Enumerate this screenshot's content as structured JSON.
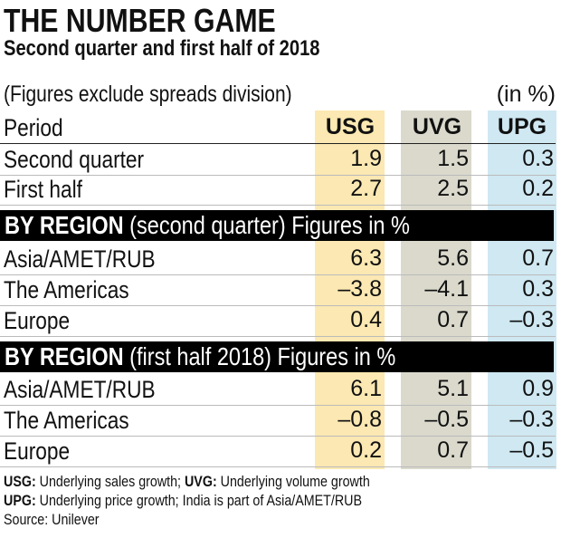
{
  "title": "THE NUMBER GAME",
  "subtitle": "Second quarter and first half of 2018",
  "note": "(Figures exclude spreads division)",
  "unit": "(in %)",
  "colors": {
    "USG": "#fbe8b2",
    "UVG": "#dad9cc",
    "UPG": "#cfe8f2",
    "section_bar": "#000000"
  },
  "chart_data": {
    "type": "table",
    "columns": [
      "Period",
      "USG",
      "UVG",
      "UPG"
    ],
    "sections": [
      {
        "heading_bold": "",
        "heading_rest": "",
        "rows": [
          {
            "label": "Second quarter",
            "values": [
              "1.9",
              "1.5",
              "0.3"
            ]
          },
          {
            "label": "First half",
            "values": [
              "2.7",
              "2.5",
              "0.2"
            ]
          }
        ]
      },
      {
        "heading_bold": "BY REGION",
        "heading_rest": " (second quarter) Figures in %",
        "rows": [
          {
            "label": "Asia/AMET/RUB",
            "values": [
              "6.3",
              "5.6",
              "0.7"
            ]
          },
          {
            "label": "The Americas",
            "values": [
              "–3.8",
              "–4.1",
              "0.3"
            ]
          },
          {
            "label": "Europe",
            "values": [
              "0.4",
              "0.7",
              "–0.3"
            ]
          }
        ]
      },
      {
        "heading_bold": "BY REGION",
        "heading_rest": " (first half 2018) Figures in %",
        "rows": [
          {
            "label": "Asia/AMET/RUB",
            "values": [
              "6.1",
              "5.1",
              "0.9"
            ]
          },
          {
            "label": "The Americas",
            "values": [
              "–0.8",
              "–0.5",
              "–0.3"
            ]
          },
          {
            "label": "Europe",
            "values": [
              "0.2",
              "0.7",
              "–0.5"
            ]
          }
        ]
      }
    ]
  },
  "footnotes": [
    {
      "bold": "USG:",
      "text": " Underlying sales growth; ",
      "bold2": "UVG:",
      "text2": " Underlying volume growth"
    },
    {
      "bold": "UPG:",
      "text": " Underlying price growth; India is part of Asia/AMET/RUB",
      "bold2": "",
      "text2": ""
    },
    {
      "bold": "",
      "text": "Source: Unilever",
      "bold2": "",
      "text2": ""
    }
  ]
}
